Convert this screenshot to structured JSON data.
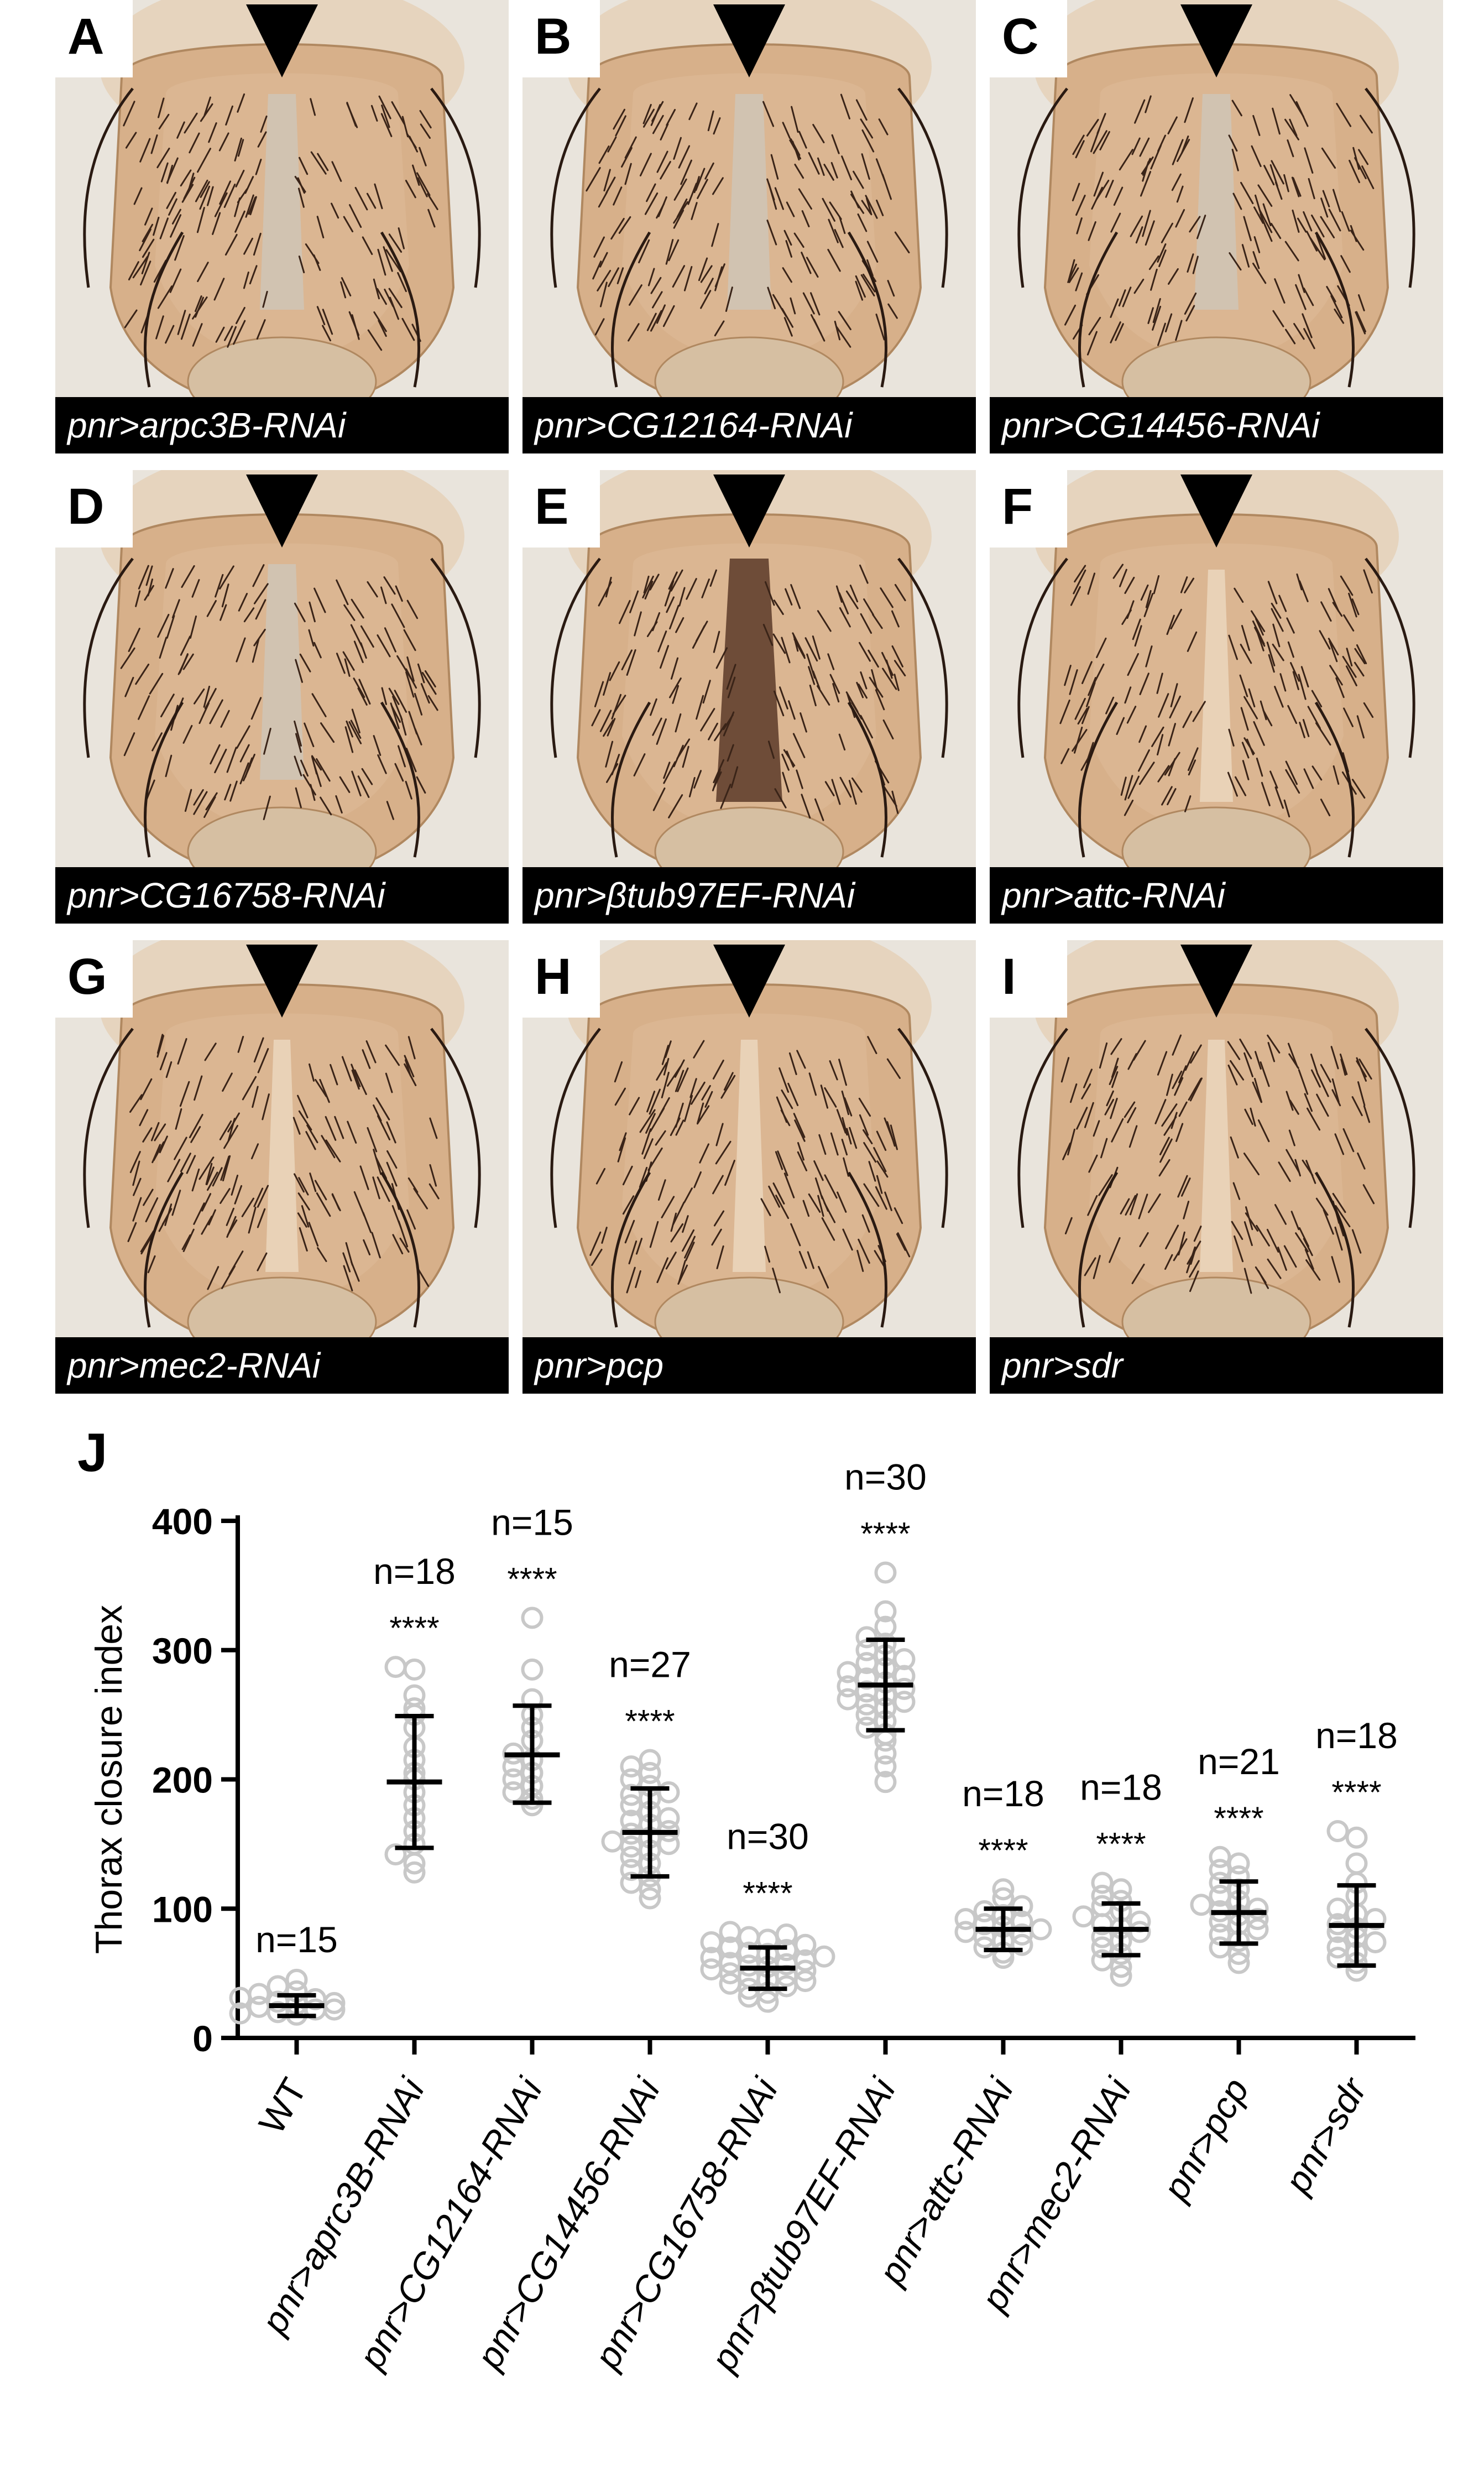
{
  "panels": [
    {
      "letter": "A",
      "genotype": "pnr>arpc3B-RNAi",
      "phenotype": "cleft"
    },
    {
      "letter": "B",
      "genotype": "pnr>CG12164-RNAi",
      "phenotype": "cleft"
    },
    {
      "letter": "C",
      "genotype": "pnr>CG14456-RNAi",
      "phenotype": "cleft"
    },
    {
      "letter": "D",
      "genotype": "pnr>CG16758-RNAi",
      "phenotype": "cleft"
    },
    {
      "letter": "E",
      "genotype": "pnr>βtub97EF-RNAi",
      "phenotype": "dark-cleft"
    },
    {
      "letter": "F",
      "genotype": "pnr>attc-RNAi",
      "phenotype": "mild"
    },
    {
      "letter": "G",
      "genotype": "pnr>mec2-RNAi",
      "phenotype": "mild"
    },
    {
      "letter": "H",
      "genotype": "pnr>pcp",
      "phenotype": "mild"
    },
    {
      "letter": "I",
      "genotype": "pnr>sdr",
      "phenotype": "mild"
    }
  ],
  "chart_label": "J",
  "chart_data": {
    "type": "scatter",
    "ylabel": "Thorax closure index",
    "ylim": [
      0,
      400
    ],
    "yticks": [
      "0",
      "100",
      "200",
      "300",
      "400"
    ],
    "categories": [
      "WT",
      "pnr>aprc3B-RNAi",
      "pnr>CG12164-RNAi",
      "pnr>CG14456-RNAi",
      "pnr>CG16758-RNAi",
      "pnr>βtub97EF-RNAi",
      "pnr>attc-RNAi",
      "pnr>mec2-RNAi",
      "pnr>pcp",
      "pnr>sdr"
    ],
    "groups": [
      {
        "n_label": "n=15",
        "sig": "",
        "mean": 25,
        "sd_low": 17,
        "sd_high": 33,
        "points": [
          18,
          20,
          22,
          24,
          26,
          28,
          30,
          34,
          36,
          40,
          45,
          22,
          27,
          19,
          31
        ]
      },
      {
        "n_label": "n=18",
        "sig": "****",
        "mean": 198,
        "sd_low": 147,
        "sd_high": 249,
        "points": [
          128,
          135,
          142,
          150,
          160,
          170,
          180,
          190,
          200,
          205,
          215,
          225,
          240,
          250,
          255,
          265,
          285,
          287
        ]
      },
      {
        "n_label": "n=15",
        "sig": "****",
        "mean": 219,
        "sd_low": 182,
        "sd_high": 257,
        "points": [
          180,
          185,
          190,
          195,
          200,
          205,
          210,
          215,
          220,
          230,
          240,
          250,
          262,
          285,
          325
        ]
      },
      {
        "n_label": "n=27",
        "sig": "****",
        "mean": 159,
        "sd_low": 125,
        "sd_high": 193,
        "points": [
          108,
          115,
          120,
          125,
          130,
          135,
          140,
          145,
          148,
          150,
          152,
          155,
          158,
          160,
          165,
          168,
          170,
          175,
          180,
          185,
          188,
          190,
          195,
          200,
          205,
          210,
          215
        ]
      },
      {
        "n_label": "n=30",
        "sig": "****",
        "mean": 54,
        "sd_low": 38,
        "sd_high": 70,
        "points": [
          28,
          32,
          35,
          38,
          40,
          42,
          44,
          45,
          47,
          48,
          50,
          52,
          53,
          55,
          56,
          57,
          58,
          60,
          62,
          63,
          65,
          66,
          68,
          70,
          72,
          74,
          76,
          78,
          80,
          82
        ]
      },
      {
        "n_label": "n=30",
        "sig": "****",
        "mean": 273,
        "sd_low": 238,
        "sd_high": 308,
        "points": [
          198,
          210,
          220,
          230,
          235,
          240,
          245,
          250,
          255,
          258,
          260,
          262,
          265,
          268,
          270,
          272,
          275,
          278,
          280,
          283,
          286,
          290,
          293,
          296,
          300,
          305,
          310,
          318,
          330,
          360
        ]
      },
      {
        "n_label": "n=18",
        "sig": "****",
        "mean": 84,
        "sd_low": 68,
        "sd_high": 100,
        "points": [
          62,
          66,
          70,
          72,
          75,
          78,
          80,
          82,
          84,
          86,
          88,
          90,
          92,
          95,
          98,
          102,
          108,
          115
        ]
      },
      {
        "n_label": "n=18",
        "sig": "****",
        "mean": 84,
        "sd_low": 64,
        "sd_high": 104,
        "points": [
          48,
          55,
          60,
          65,
          70,
          75,
          78,
          82,
          85,
          88,
          90,
          94,
          98,
          102,
          106,
          110,
          115,
          120
        ]
      },
      {
        "n_label": "n=21",
        "sig": "****",
        "mean": 97,
        "sd_low": 73,
        "sd_high": 121,
        "points": [
          58,
          65,
          70,
          75,
          80,
          84,
          88,
          90,
          92,
          95,
          98,
          100,
          103,
          106,
          110,
          115,
          120,
          125,
          130,
          135,
          140
        ]
      },
      {
        "n_label": "n=18",
        "sig": "****",
        "mean": 87,
        "sd_low": 56,
        "sd_high": 118,
        "points": [
          52,
          58,
          62,
          66,
          70,
          74,
          78,
          82,
          85,
          88,
          92,
          96,
          100,
          110,
          120,
          135,
          155,
          160
        ]
      }
    ]
  }
}
